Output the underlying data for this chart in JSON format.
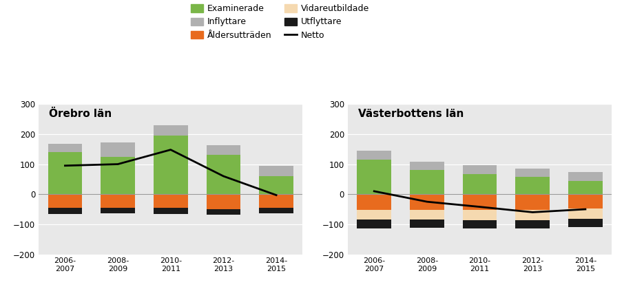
{
  "title_left": "Örebro län",
  "title_right": "Västerbottens län",
  "categories": [
    "2006-\n2007",
    "2008-\n2009",
    "2010-\n2011",
    "2012-\n2013",
    "2014-\n2015"
  ],
  "orebro": {
    "examinerade": [
      140,
      125,
      195,
      130,
      60
    ],
    "aldersuttraden": [
      -45,
      -45,
      -45,
      -50,
      -45
    ],
    "utflyttare": [
      -20,
      -18,
      -20,
      -18,
      -18
    ],
    "inflyttare": [
      28,
      48,
      35,
      32,
      35
    ],
    "vidareutbildade": [
      0,
      0,
      0,
      0,
      0
    ],
    "netto": [
      95,
      100,
      148,
      60,
      -3
    ]
  },
  "vasterbotten": {
    "examinerade": [
      115,
      80,
      68,
      58,
      45
    ],
    "aldersuttraden": [
      -52,
      -52,
      -52,
      -52,
      -48
    ],
    "utflyttare": [
      -30,
      -28,
      -28,
      -28,
      -28
    ],
    "inflyttare": [
      30,
      28,
      28,
      28,
      28
    ],
    "vidareutbildade": [
      -32,
      -32,
      -35,
      -35,
      -33
    ],
    "netto": [
      10,
      -25,
      -42,
      -60,
      -50
    ]
  },
  "colors": {
    "examinerade": "#7ab648",
    "aldersuttraden": "#e86b1e",
    "utflyttare": "#1a1a1a",
    "inflyttare": "#b0b0b0",
    "vidareutbildade": "#f5d9b0",
    "netto": "#000000"
  },
  "ylim": [
    -200,
    300
  ],
  "yticks": [
    -200,
    -100,
    0,
    100,
    200,
    300
  ],
  "background": "#e8e8e8",
  "bar_width": 0.65,
  "fig_width": 9.35,
  "fig_height": 4.2
}
